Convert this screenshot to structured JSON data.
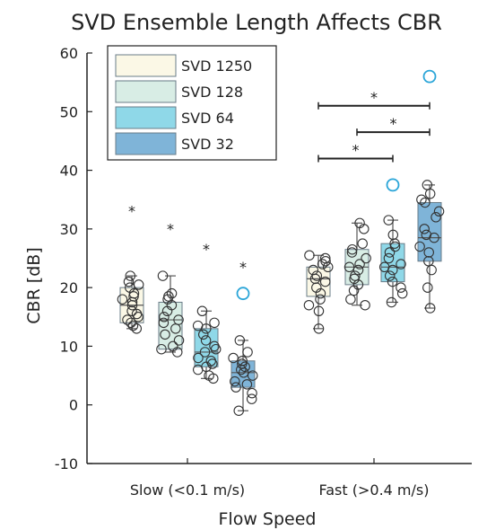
{
  "chart_data": {
    "type": "box",
    "title": "SVD Ensemble Length Affects CBR",
    "xlabel": "Flow Speed",
    "ylabel": "CBR [dB]",
    "ylim": [
      -10,
      60
    ],
    "yticks": [
      -10,
      0,
      10,
      20,
      30,
      40,
      50,
      60
    ],
    "categories": [
      "Slow (<0.1 m/s)",
      "Fast (>0.4 m/s)"
    ],
    "legend_position": "top-left",
    "grid": false,
    "series": [
      {
        "name": "SVD 1250",
        "color": "#fbf8e6",
        "boxes": [
          {
            "category": "Slow (<0.1 m/s)",
            "whisker_low": 13,
            "q1": 14,
            "median": 17,
            "q3": 20,
            "whisker_high": 22,
            "points": [
              13,
              13.5,
              14,
              14.5,
              15,
              15.5,
              16,
              17,
              17.5,
              18,
              18.5,
              19,
              20,
              20.5,
              21,
              22
            ],
            "outliers": []
          },
          {
            "category": "Fast (>0.4 m/s)",
            "whisker_low": 13,
            "q1": 18.5,
            "median": 21.5,
            "q3": 23.5,
            "whisker_high": 25.5,
            "points": [
              13,
              16,
              17,
              18,
              19,
              20,
              21,
              21.5,
              22,
              23,
              23.5,
              24,
              24.5,
              25,
              25.5
            ],
            "outliers": []
          }
        ]
      },
      {
        "name": "SVD 128",
        "color": "#d8ede5",
        "boxes": [
          {
            "category": "Slow (<0.1 m/s)",
            "whisker_low": 9,
            "q1": 9.5,
            "median": 14.5,
            "q3": 17.5,
            "whisker_high": 22,
            "points": [
              9,
              9.5,
              10,
              11,
              12,
              13,
              14,
              14.5,
              15,
              16,
              17,
              18,
              18.5,
              19,
              22
            ],
            "outliers": []
          },
          {
            "category": "Fast (>0.4 m/s)",
            "whisker_low": 17,
            "q1": 20.5,
            "median": 23.5,
            "q3": 26.5,
            "whisker_high": 31,
            "points": [
              17,
              18,
              19.5,
              20.5,
              21.5,
              22,
              23,
              23.5,
              24,
              25,
              26,
              26.5,
              27.5,
              30,
              31
            ],
            "outliers": []
          }
        ]
      },
      {
        "name": "SVD 64",
        "color": "#8fd8e8",
        "boxes": [
          {
            "category": "Slow (<0.1 m/s)",
            "whisker_low": 4.5,
            "q1": 6.5,
            "median": 9,
            "q3": 13,
            "whisker_high": 16,
            "points": [
              4.5,
              5,
              6,
              6.5,
              7,
              7.5,
              8,
              9,
              9.5,
              10,
              11,
              12,
              13,
              13.5,
              14,
              16
            ],
            "outliers": []
          },
          {
            "category": "Fast (>0.4 m/s)",
            "whisker_low": 17.5,
            "q1": 21,
            "median": 23.5,
            "q3": 27.5,
            "whisker_high": 31.5,
            "points": [
              17.5,
              19,
              20,
              21,
              22,
              23,
              23.5,
              24,
              25,
              26,
              27,
              27.5,
              29,
              31.5
            ],
            "outliers": [
              37.5
            ]
          }
        ]
      },
      {
        "name": "SVD 32",
        "color": "#7fb4d8",
        "boxes": [
          {
            "category": "Slow (<0.1 m/s)",
            "whisker_low": -1,
            "q1": 3,
            "median": 5.5,
            "q3": 7.5,
            "whisker_high": 11,
            "points": [
              -1,
              1,
              2,
              3,
              3.5,
              4,
              5,
              5.5,
              6,
              6.5,
              7,
              7.5,
              8,
              9,
              11
            ],
            "outliers": [
              19
            ]
          },
          {
            "category": "Fast (>0.4 m/s)",
            "whisker_low": 16.5,
            "q1": 24.5,
            "median": 28.5,
            "q3": 34.5,
            "whisker_high": 37.5,
            "points": [
              16.5,
              20,
              23,
              24.5,
              26,
              27,
              28.5,
              29,
              30,
              32,
              33,
              34.5,
              35,
              36,
              37.5
            ],
            "outliers": [
              56
            ]
          }
        ]
      }
    ],
    "significance_markers": [
      {
        "category": "Slow (<0.1 m/s)",
        "series": "SVD 1250",
        "y": 34,
        "label": "*"
      },
      {
        "category": "Slow (<0.1 m/s)",
        "series": "SVD 128",
        "y": 31,
        "label": "*"
      },
      {
        "category": "Slow (<0.1 m/s)",
        "series": "SVD 64",
        "y": 27.5,
        "label": "*"
      },
      {
        "category": "Slow (<0.1 m/s)",
        "series": "SVD 32",
        "y": 24.5,
        "label": "*"
      }
    ],
    "significance_brackets": [
      {
        "category": "Fast (>0.4 m/s)",
        "from": "SVD 1250",
        "to": "SVD 32",
        "y": 51,
        "label": "*"
      },
      {
        "category": "Fast (>0.4 m/s)",
        "from": "SVD 128",
        "to": "SVD 32",
        "y": 46.5,
        "label": "*"
      },
      {
        "category": "Fast (>0.4 m/s)",
        "from": "SVD 1250",
        "to": "SVD 64",
        "y": 42,
        "label": "*"
      }
    ],
    "outlier_color": "#2aa5d8"
  }
}
